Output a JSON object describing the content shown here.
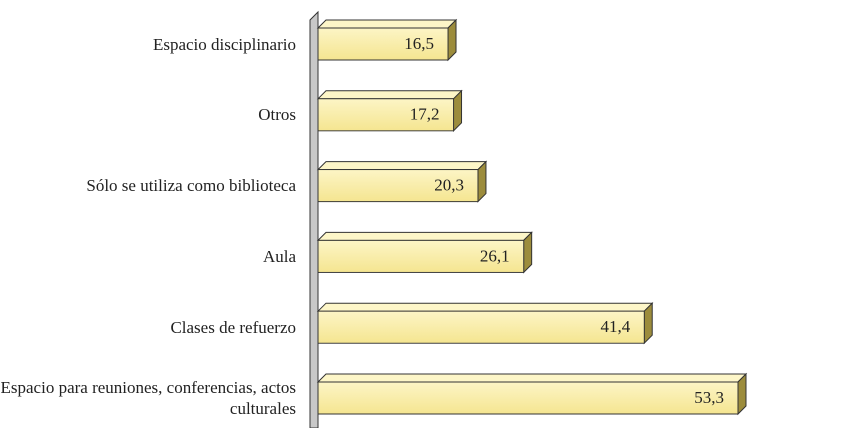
{
  "chart_data": {
    "type": "bar",
    "orientation": "horizontal",
    "categories": [
      "Espacio disciplinario",
      "Otros",
      "Sólo se utiliza como biblioteca",
      "Aula",
      "Clases de refuerzo",
      "Espacio para reuniones, conferencias, actos culturales"
    ],
    "values": [
      16.5,
      17.2,
      20.3,
      26.1,
      41.4,
      53.3
    ],
    "value_labels": [
      "16,5",
      "17,2",
      "20,3",
      "26,1",
      "41,4",
      "53,3"
    ],
    "color": "#f8eb9c"
  }
}
